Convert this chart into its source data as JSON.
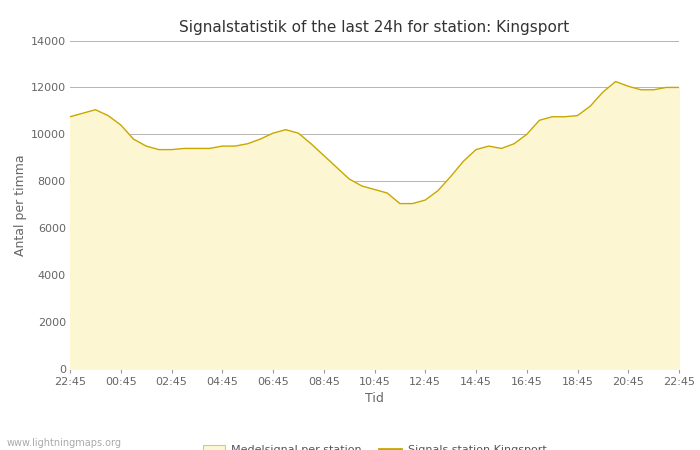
{
  "title": "Signalstatistik of the last 24h for station: Kingsport",
  "xlabel": "Tid",
  "ylabel": "Antal per timma",
  "watermark": "www.lightningmaps.org",
  "xtick_labels": [
    "22:45",
    "00:45",
    "02:45",
    "04:45",
    "06:45",
    "08:45",
    "10:45",
    "12:45",
    "14:45",
    "16:45",
    "18:45",
    "20:45",
    "22:45"
  ],
  "ylim": [
    0,
    14000
  ],
  "yticks": [
    0,
    2000,
    4000,
    6000,
    8000,
    10000,
    12000,
    14000
  ],
  "fill_color": "#fdf6d3",
  "line_color": "#c8a800",
  "bg_color": "#ffffff",
  "grid_color": "#aaaaaa",
  "y_values": [
    10750,
    10900,
    11050,
    10800,
    10400,
    9800,
    9500,
    9350,
    9350,
    9400,
    9400,
    9400,
    9500,
    9500,
    9600,
    9800,
    10050,
    10200,
    10050,
    9600,
    9100,
    8600,
    8100,
    7800,
    7650,
    7500,
    7050,
    7050,
    7200,
    7600,
    8200,
    8850,
    9350,
    9500,
    9400,
    9600,
    10000,
    10600,
    10750,
    10750,
    10800,
    11200,
    11800,
    12250,
    12050,
    11900,
    11900,
    12000,
    12000
  ],
  "legend_fill_label": "Medelsignal per station",
  "legend_line_label": "Signals station Kingsport",
  "title_fontsize": 11,
  "axis_label_fontsize": 9,
  "tick_fontsize": 8
}
